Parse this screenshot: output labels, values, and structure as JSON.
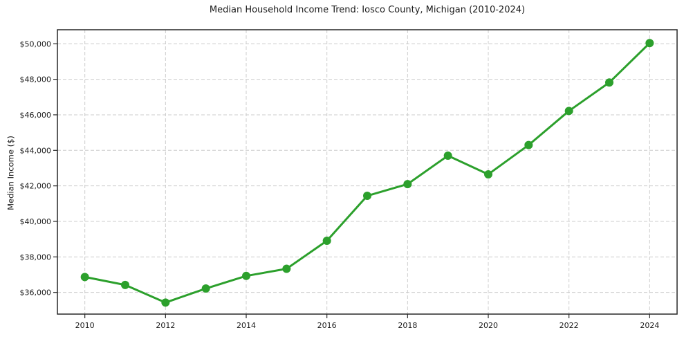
{
  "chart_data": {
    "type": "line",
    "title": "Median Household Income Trend: Iosco County, Michigan (2010-2024)",
    "xlabel": "",
    "ylabel": "Median Income ($)",
    "x": [
      2010,
      2011,
      2012,
      2013,
      2014,
      2015,
      2016,
      2017,
      2018,
      2019,
      2020,
      2021,
      2022,
      2023,
      2024
    ],
    "values": [
      36870,
      36420,
      35430,
      36220,
      36930,
      37330,
      38910,
      41440,
      42100,
      43700,
      42650,
      44300,
      46220,
      47820,
      50040
    ],
    "series_name": "Median Household Income",
    "xlim": [
      2009.32,
      2024.68
    ],
    "ylim": [
      34780,
      50790
    ],
    "x_tick_values": [
      2010,
      2012,
      2014,
      2016,
      2018,
      2020,
      2022,
      2024
    ],
    "x_tick_labels": [
      "2010",
      "2012",
      "2014",
      "2016",
      "2018",
      "2020",
      "2022",
      "2024"
    ],
    "y_tick_values": [
      36000,
      38000,
      40000,
      42000,
      44000,
      46000,
      48000,
      50000
    ],
    "y_tick_labels": [
      "$36,000",
      "$38,000",
      "$40,000",
      "$42,000",
      "$44,000",
      "$46,000",
      "$48,000",
      "$50,000"
    ],
    "legend": "none",
    "grid": "dashed-both",
    "colors": {
      "line": "#2ca02c",
      "marker": "#2ca02c",
      "grid": "#cccccc",
      "spine": "#262626",
      "text": "#1a1a1a",
      "background": "#ffffff"
    }
  }
}
